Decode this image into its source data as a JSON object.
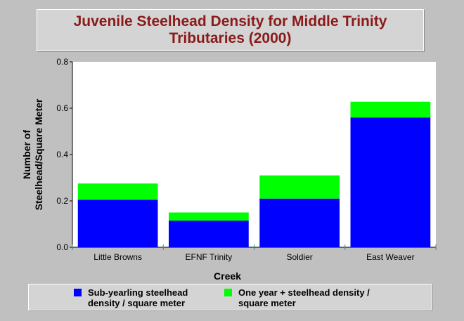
{
  "chart_data": {
    "type": "bar",
    "stacked": true,
    "title": "Juvenile Steelhead Density for Middle Trinity Tributaries (2000)",
    "xlabel": "Creek",
    "ylabel_lines": [
      "Number of",
      "Steelhead/Square Meter"
    ],
    "ylim": [
      0,
      0.8
    ],
    "yticks": [
      "0.0",
      "0.2",
      "0.4",
      "0.6",
      "0.8"
    ],
    "ytick_values": [
      0,
      0.2,
      0.4,
      0.6,
      0.8
    ],
    "categories": [
      "Little Browns",
      "EFNF Trinity",
      "Soldier",
      "East Weaver"
    ],
    "series": [
      {
        "name": "Sub-yearling steelhead density / square meter",
        "color": "#0000ff",
        "values": [
          0.205,
          0.115,
          0.21,
          0.56
        ]
      },
      {
        "name": "One year + steelhead density / square meter",
        "color": "#00ff00",
        "values": [
          0.07,
          0.035,
          0.1,
          0.068
        ]
      }
    ],
    "plot_background": "#ffffff",
    "legend_position": "bottom"
  }
}
